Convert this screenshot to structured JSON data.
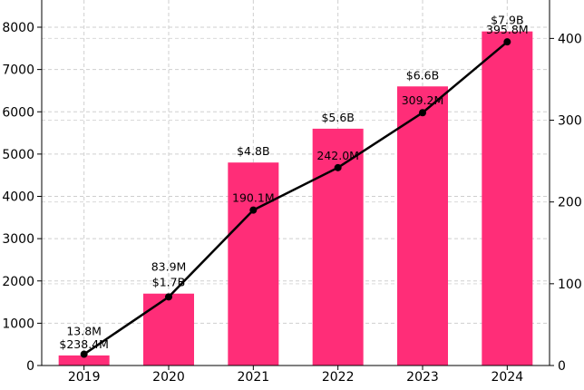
{
  "chart_data": {
    "type": "bar",
    "title": "",
    "xlabel": "",
    "ylabel": "",
    "ylabel_right": "",
    "categories": [
      "2019",
      "2020",
      "2021",
      "2022",
      "2023",
      "2024"
    ],
    "grid": true,
    "bar_color": "#FF2D78",
    "line_color": "#000000",
    "series": [
      {
        "type": "bar",
        "axis": "left",
        "values": [
          238.4,
          1700,
          4800,
          5600,
          6600,
          7900
        ],
        "labels": [
          "$238.4M",
          "$1.7B",
          "$4.8B",
          "$5.6B",
          "$6.6B",
          "$7.9B"
        ]
      },
      {
        "type": "line",
        "axis": "right",
        "values": [
          13.8,
          83.9,
          190.1,
          242.0,
          309.2,
          395.8
        ],
        "labels": [
          "13.8M",
          "83.9M",
          "190.1M",
          "242.0M",
          "309.2M",
          "395.8M"
        ]
      }
    ],
    "y_left": {
      "ylim": [
        0,
        8000
      ],
      "ticks": [
        "0",
        "1000",
        "2000",
        "3000",
        "4000",
        "5000",
        "6000",
        "7000",
        "8000"
      ]
    },
    "y_right": {
      "ylim": [
        0,
        447
      ],
      "ticks": [
        "0",
        "100",
        "200",
        "300",
        "400"
      ]
    }
  }
}
